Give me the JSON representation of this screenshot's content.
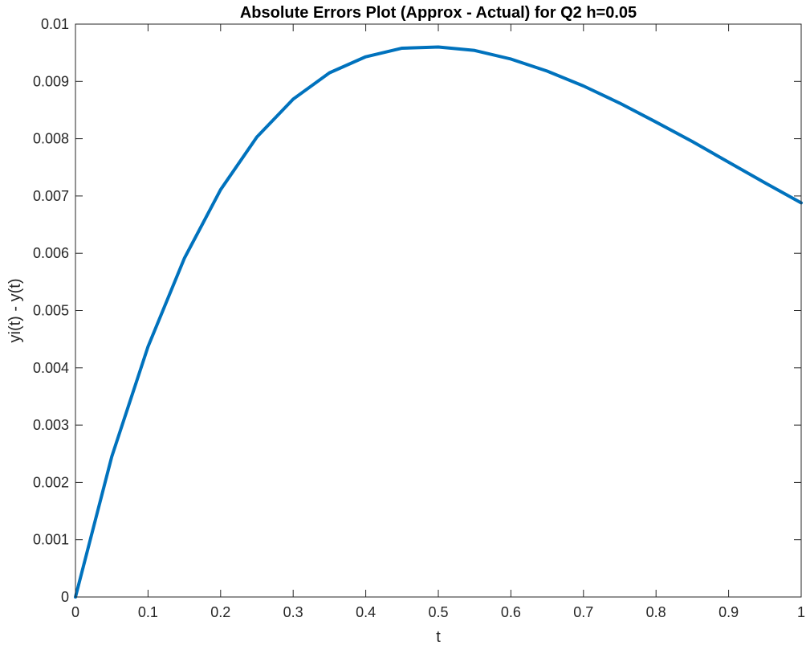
{
  "chart_data": {
    "type": "line",
    "title": "Absolute Errors Plot (Approx - Actual) for Q2 h=0.05",
    "xlabel": "t",
    "ylabel": "yi(t) - y(t)",
    "xlim": [
      0,
      1
    ],
    "ylim": [
      0,
      0.01
    ],
    "xticks": [
      0,
      0.1,
      0.2,
      0.3,
      0.4,
      0.5,
      0.6,
      0.7,
      0.8,
      0.9,
      1
    ],
    "xtick_labels": [
      "0",
      "0.1",
      "0.2",
      "0.3",
      "0.4",
      "0.5",
      "0.6",
      "0.7",
      "0.8",
      "0.9",
      "1"
    ],
    "yticks": [
      0,
      0.001,
      0.002,
      0.003,
      0.004,
      0.005,
      0.006,
      0.007,
      0.008,
      0.009,
      0.01
    ],
    "ytick_labels": [
      "0",
      "0.001",
      "0.002",
      "0.003",
      "0.004",
      "0.005",
      "0.006",
      "0.007",
      "0.008",
      "0.009",
      "0.01"
    ],
    "grid": false,
    "legend": "none",
    "series": [
      {
        "color": "#0072BD",
        "x": [
          0,
          0.05,
          0.1,
          0.15,
          0.2,
          0.25,
          0.3,
          0.35,
          0.4,
          0.45,
          0.5,
          0.55,
          0.6,
          0.65,
          0.7,
          0.75,
          0.8,
          0.85,
          0.9,
          0.95,
          1
        ],
        "y": [
          0,
          0.00245,
          0.00437,
          0.00591,
          0.00711,
          0.00803,
          0.00869,
          0.00915,
          0.00943,
          0.00958,
          0.0096,
          0.00954,
          0.00939,
          0.00918,
          0.00892,
          0.00862,
          0.00829,
          0.00795,
          0.00759,
          0.00723,
          0.00688
        ]
      }
    ]
  }
}
